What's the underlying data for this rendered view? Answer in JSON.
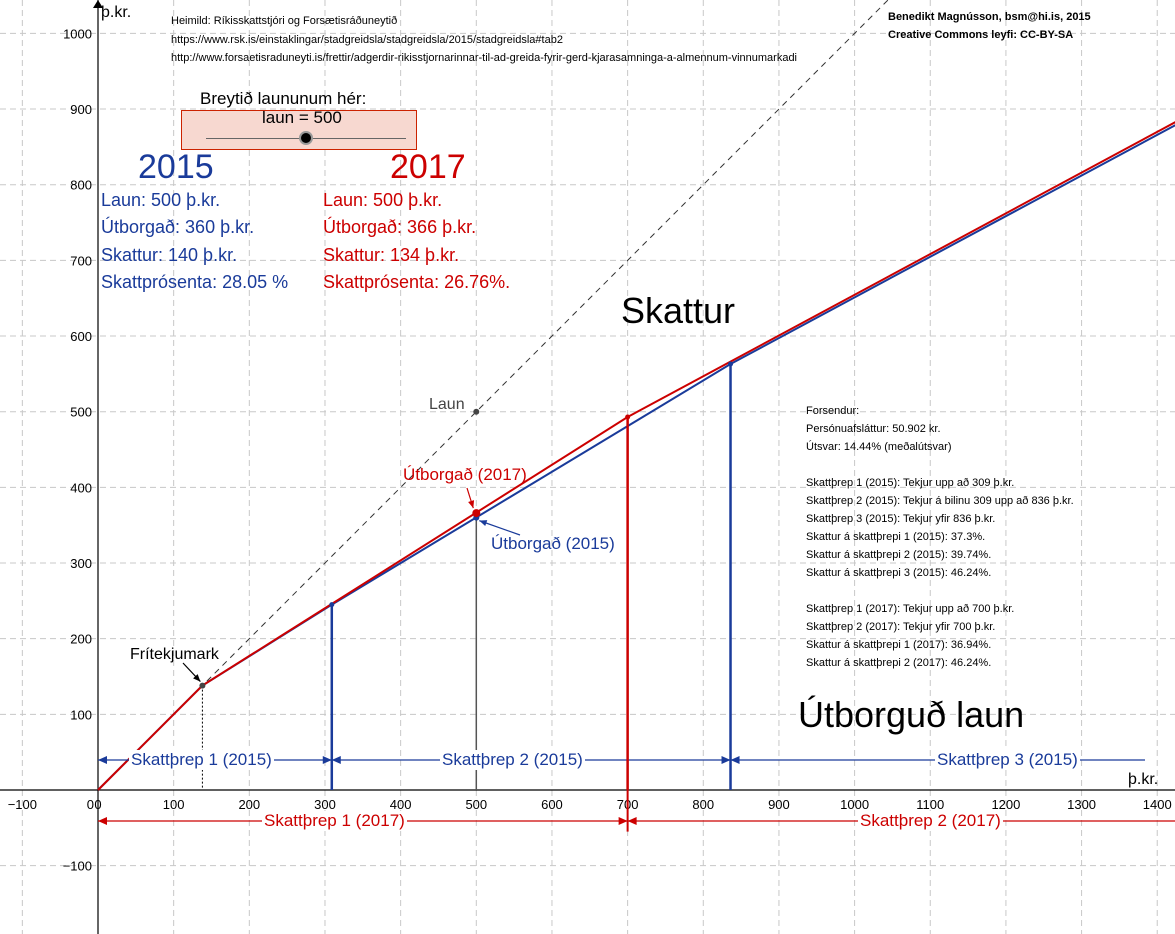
{
  "sources": {
    "line1": "Heimild: Ríkisskattstjóri og Forsætisráðuneytið",
    "line2": "https://www.rsk.is/einstaklingar/stadgreidsla/stadgreidsla/2015/stadgreidsla#tab2",
    "line3": "http://www.forsaetisraduneyti.is/frettir/adgerdir-rikisstjornarinnar-til-ad-greida-fyrir-gerd-kjarasamninga-a-almennum-vinnumarkadi"
  },
  "credits": {
    "author": "Benedikt Magnússon, bsm@hi.is, 2015",
    "license": "Creative Commons leyfi: CC-BY-SA"
  },
  "slider": {
    "label": "Breytið laununum hér:",
    "value_text": "laun = 500",
    "value": 500,
    "min": 0,
    "max": 1000
  },
  "panel_2015": {
    "year": "2015",
    "laun": "Laun: 500 þ.kr.",
    "utborgad": "Útborgað: 360 þ.kr.",
    "skattur": "Skattur: 140 þ.kr.",
    "skattprosenta": "Skattprósenta: 28.05 %"
  },
  "panel_2017": {
    "year": "2017",
    "laun": "Laun: 500 þ.kr.",
    "utborgad": "Útborgað: 366  þ.kr.",
    "skattur": "Skattur: 134  þ.kr.",
    "skattprosenta": "Skattprósenta: 26.76%."
  },
  "assumptions": {
    "title": "Forsendur:",
    "lines": [
      "Persónuafsláttur: 50.902 kr.",
      "Útsvar:  14.44% (meðalútsvar)",
      "",
      "Skattþrep 1 (2015): Tekjur upp að 309 þ.kr.",
      "Skattþrep 2 (2015): Tekjur á bilinu 309 upp að  836 þ.kr.",
      "Skattþrep 3 (2015): Tekjur yfir 836 þ.kr.",
      "Skattur á skattþrepi 1 (2015): 37.3%.",
      "Skattur á skattþrepi 2 (2015): 39.74%.",
      "Skattur á skattþrepi 3 (2015): 46.24%.",
      "",
      "Skattþrep 1 (2017): Tekjur upp að 700 þ.kr.",
      "Skattþrep 2 (2017): Tekjur yfir 700 þ.kr.",
      "Skattur á skattþrepi 1 (2017): 36.94%.",
      "Skattur á skattþrepi 2 (2017): 46.24%."
    ]
  },
  "colors": {
    "blue": "#1a3b9a",
    "red": "#cc0000",
    "grid": "#c8c8c8"
  },
  "chart_data": {
    "type": "line",
    "xlabel": "þ.kr.",
    "ylabel": "þ.kr.",
    "xlim": [
      -130,
      1430
    ],
    "ylim": [
      -185,
      1045
    ],
    "x_ticks": [
      -100,
      0,
      100,
      200,
      300,
      400,
      500,
      600,
      700,
      800,
      900,
      1000,
      1100,
      1200,
      1300,
      1400
    ],
    "y_ticks": [
      -100,
      100,
      200,
      300,
      400,
      500,
      600,
      700,
      800,
      900,
      1000
    ],
    "grid": true,
    "series": [
      {
        "name": "Útborgað (2015)",
        "color": "#1a3b9a",
        "x": [
          0,
          138,
          309,
          836,
          1430
        ],
        "y": [
          0,
          138,
          245,
          563,
          882
        ]
      },
      {
        "name": "Útborgað (2017)",
        "color": "#cc0000",
        "x": [
          0,
          138,
          700,
          1430
        ],
        "y": [
          0,
          138,
          493,
          886
        ]
      }
    ],
    "identity_line": {
      "x": [
        0,
        1045
      ],
      "y": [
        0,
        1045
      ]
    },
    "vertical_markers": [
      {
        "x": 309,
        "y": 245,
        "color": "#1a3b9a"
      },
      {
        "x": 836,
        "y": 563,
        "color": "#1a3b9a"
      },
      {
        "x": 700,
        "y": 493,
        "color": "#cc0000"
      },
      {
        "x": 500,
        "y": 360,
        "color": "#555555"
      }
    ],
    "points": {
      "frítekjumark": {
        "x": 138,
        "y": 138
      },
      "laun": {
        "x": 500,
        "y": 500
      },
      "utborgad_2015": {
        "x": 500,
        "y": 360
      },
      "utborgad_2017": {
        "x": 500,
        "y": 366
      }
    },
    "brackets_2015": [
      {
        "label": "Skattþrep  1 (2015)",
        "from": 0,
        "to": 309
      },
      {
        "label": "Skattþrep 2 (2015)",
        "from": 309,
        "to": 836
      },
      {
        "label": "Skattþrep 3 (2015)",
        "from": 836,
        "to": 1430
      }
    ],
    "brackets_2017": [
      {
        "label": "Skattþrep 1 (2017)",
        "from": 0,
        "to": 700
      },
      {
        "label": "Skattþrep 2 (2017)",
        "from": 700,
        "to": 1430
      }
    ],
    "annotations": {
      "skattur": "Skattur",
      "utborgud_laun": "Útborguð laun",
      "laun": "Laun",
      "fritekjumark": "Frítekjumark",
      "utborgad_2017": "Útborgað (2017)",
      "utborgad_2015": "Útborgað (2015)"
    }
  }
}
